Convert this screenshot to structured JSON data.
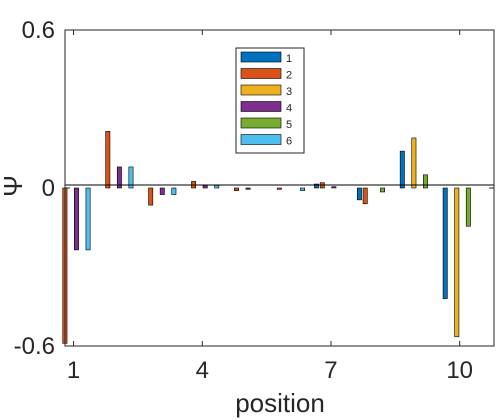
{
  "chart_data": {
    "type": "bar",
    "title": "",
    "xlabel": "position",
    "ylabel": "Ψ",
    "x": [
      1,
      2,
      3,
      4,
      5,
      6,
      7,
      8,
      9,
      10
    ],
    "xticks": [
      "1",
      "4",
      "7",
      "10"
    ],
    "ylim": [
      -0.6,
      0.6
    ],
    "yticks": [
      "-0.6",
      "0",
      "0.6"
    ],
    "grid": false,
    "legend_position": "top-center",
    "series": [
      {
        "name": "1",
        "color": "#0072BD",
        "values": [
          0,
          0,
          0,
          0,
          0,
          0,
          0.015,
          -0.045,
          0.14,
          -0.42
        ]
      },
      {
        "name": "2",
        "color": "#D95319",
        "values": [
          -0.59,
          0.215,
          -0.065,
          0.025,
          -0.01,
          -0.005,
          0.02,
          -0.06,
          0,
          0
        ]
      },
      {
        "name": "3",
        "color": "#EDB120",
        "values": [
          0,
          0,
          0,
          0,
          0,
          0,
          0,
          0,
          0.19,
          -0.565
        ]
      },
      {
        "name": "4",
        "color": "#7E2F8E",
        "values": [
          -0.235,
          0.08,
          -0.025,
          0.01,
          -0.005,
          0,
          0.005,
          0,
          0,
          0
        ]
      },
      {
        "name": "5",
        "color": "#77AC30",
        "values": [
          0,
          0,
          0,
          0,
          0,
          0,
          0,
          -0.015,
          0.05,
          -0.145
        ]
      },
      {
        "name": "6",
        "color": "#4DBEEE",
        "values": [
          -0.235,
          0.08,
          -0.025,
          0.01,
          0,
          -0.01,
          0,
          0,
          0,
          0
        ]
      }
    ]
  }
}
